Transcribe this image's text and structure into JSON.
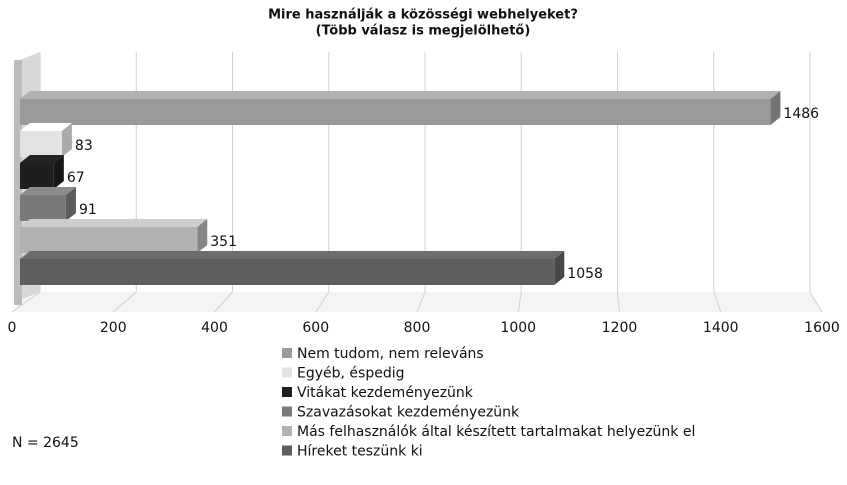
{
  "chart_data": {
    "type": "bar",
    "orientation": "horizontal",
    "title": "Mire használják a közösségi webhelyeket?",
    "subtitle": "(Több válasz is megjelölhető)",
    "categories": [
      "Nem tudom, nem releváns",
      "Egyéb, éspedig",
      "Vitákat kezdeményezünk",
      "Szavazásokat kezdeményezünk",
      "Más felhasználók által készített tartalmakat helyezünk el",
      "Híreket teszünk ki"
    ],
    "values": [
      1486,
      83,
      67,
      91,
      351,
      1058
    ],
    "colors": [
      "#9a9a9a",
      "#e2e2e2",
      "#1e1e1e",
      "#7a7a7a",
      "#b2b2b2",
      "#5e5e5e"
    ],
    "xlim": [
      0,
      1600
    ],
    "xticks": [
      0,
      200,
      400,
      600,
      800,
      1000,
      1200,
      1400,
      1600
    ],
    "grid": true,
    "legend": "bottom",
    "annotation": "N = 2645"
  }
}
